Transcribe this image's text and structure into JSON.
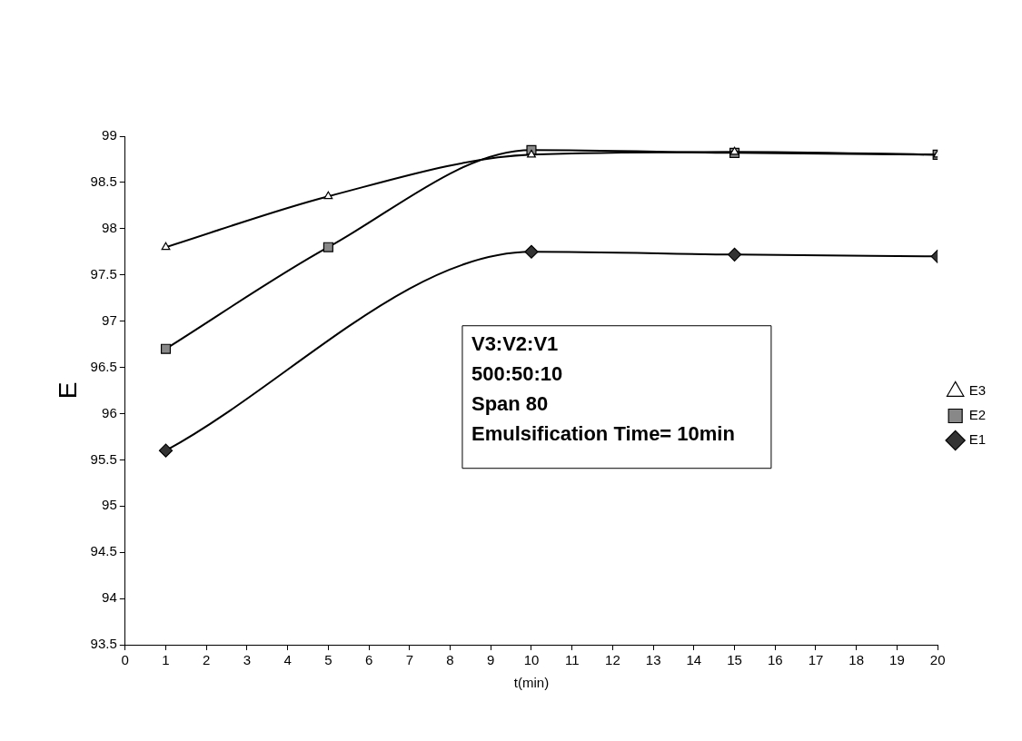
{
  "chart_data": {
    "type": "line",
    "xlabel": "t(min)",
    "ylabel": "E",
    "xlim": [
      0,
      20
    ],
    "xticks": [
      0,
      1,
      2,
      3,
      4,
      5,
      6,
      7,
      8,
      9,
      10,
      11,
      12,
      13,
      14,
      15,
      16,
      17,
      18,
      19,
      20
    ],
    "ylim": [
      93.5,
      99
    ],
    "yticks": [
      93.5,
      94,
      94.5,
      95,
      95.5,
      96,
      96.5,
      97,
      97.5,
      98,
      98.5,
      99
    ],
    "series": [
      {
        "name": "E1",
        "color": "#000000",
        "marker": "diamond",
        "x": [
          1,
          10,
          15,
          20
        ],
        "values": [
          95.6,
          97.75,
          97.72,
          97.7
        ]
      },
      {
        "name": "E2",
        "color": "#000000",
        "marker": "square",
        "x": [
          1,
          5,
          10,
          15,
          20
        ],
        "values": [
          96.7,
          97.8,
          98.85,
          98.82,
          98.8
        ]
      },
      {
        "name": "E3",
        "color": "#000000",
        "marker": "triangle",
        "x": [
          1,
          5,
          10,
          15,
          20
        ],
        "values": [
          97.8,
          98.35,
          98.8,
          98.83,
          98.8
        ]
      }
    ],
    "annotations": [
      "V3:V2:V1",
      "500:50:10",
      "Span 80",
      "Emulsification Time= 10min"
    ],
    "grid": false,
    "legend": "right",
    "line_style": "solid"
  }
}
